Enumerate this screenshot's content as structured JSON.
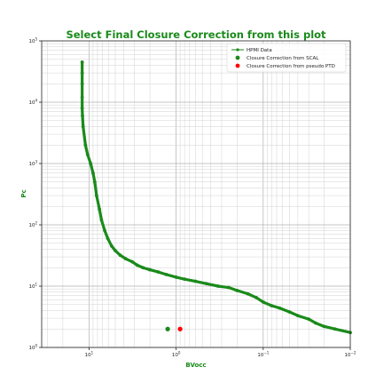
{
  "chart_data": {
    "type": "scatter",
    "title": "Select Final Closure Correction from this plot",
    "xlabel": "BVocc",
    "ylabel": "Pc",
    "x_scale": "log",
    "y_scale": "log",
    "x_axis_inverted": true,
    "xlim": [
      35,
      0.01
    ],
    "ylim": [
      1,
      100000
    ],
    "grid": true,
    "x_ticks": [
      {
        "value": 10,
        "base": "10",
        "exp": "1"
      },
      {
        "value": 1,
        "base": "10",
        "exp": "0"
      },
      {
        "value": 0.1,
        "base": "10",
        "exp": "−1"
      },
      {
        "value": 0.01,
        "base": "10",
        "exp": "−2"
      }
    ],
    "y_ticks": [
      {
        "value": 1,
        "base": "10",
        "exp": "0"
      },
      {
        "value": 10,
        "base": "10",
        "exp": "1"
      },
      {
        "value": 100,
        "base": "10",
        "exp": "2"
      },
      {
        "value": 1000,
        "base": "10",
        "exp": "3"
      },
      {
        "value": 10000,
        "base": "10",
        "exp": "4"
      },
      {
        "value": 100000,
        "base": "10",
        "exp": "5"
      }
    ],
    "legend_position": "top-right",
    "series": [
      {
        "name": "HPMI Data",
        "style": "line-with-markers",
        "color": "#1a8a1a",
        "x": [
          12.0,
          12.0,
          12.0,
          12.0,
          12.0,
          11.9,
          11.7,
          11.0,
          10.4,
          9.6,
          9.0,
          8.6,
          8.2,
          7.6,
          7.2,
          6.6,
          6.1,
          5.5,
          5.0,
          4.4,
          3.8,
          3.2,
          2.8,
          2.4,
          2.0,
          1.6,
          1.3,
          1.0,
          0.8,
          0.6,
          0.45,
          0.33,
          0.25,
          0.2,
          0.15,
          0.12,
          0.1,
          0.08,
          0.065,
          0.05,
          0.04,
          0.03,
          0.025,
          0.02,
          0.015,
          0.01
        ],
        "y": [
          45000,
          30000,
          20000,
          12000,
          8000,
          6000,
          4000,
          2000,
          1400,
          1000,
          700,
          500,
          300,
          180,
          120,
          80,
          60,
          45,
          38,
          32,
          28,
          25,
          22,
          20,
          18.5,
          17,
          15.5,
          14,
          13,
          12,
          11,
          10,
          9.5,
          8.5,
          7.5,
          6.5,
          5.5,
          4.8,
          4.4,
          3.8,
          3.3,
          2.9,
          2.5,
          2.2,
          2.0,
          1.75
        ]
      },
      {
        "name": "Closure Correction from SCAL",
        "style": "markers",
        "color": "#1a8a1a",
        "x": [
          1.25
        ],
        "y": [
          2
        ]
      },
      {
        "name": "Closure Correction from pseudo PTD",
        "style": "markers",
        "color": "#ff0000",
        "x": [
          0.9
        ],
        "y": [
          2
        ]
      }
    ]
  }
}
